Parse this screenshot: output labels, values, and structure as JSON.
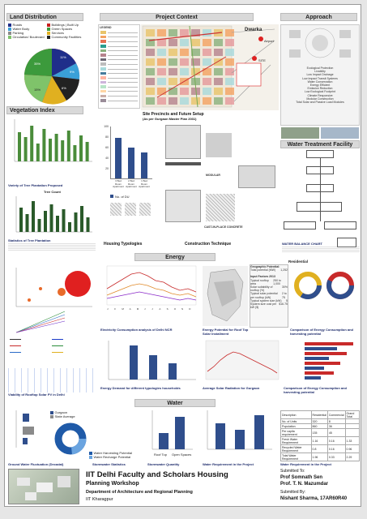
{
  "land": {
    "title": "Land Distribution",
    "legend": [
      {
        "label": "Roads",
        "color": "#1f2e8a"
      },
      {
        "label": "Buildings | Built Up",
        "color": "#c81e1e"
      },
      {
        "label": "Water Body",
        "color": "#3aa0d8"
      },
      {
        "label": "Green Spaces",
        "color": "#3c9a3c"
      },
      {
        "label": "Parking",
        "color": "#8a8a8a"
      },
      {
        "label": "Services",
        "color": "#e0b020"
      },
      {
        "label": "Circulation/ Boulevard",
        "color": "#7fc36a"
      },
      {
        "label": "Community Facilities",
        "color": "#222222"
      }
    ],
    "pie_labels": [
      "11%",
      "9%",
      "6%",
      "15%",
      "35%"
    ]
  },
  "vegetation": {
    "title": "Vegetation Index",
    "variety_title": "Variety of Tree Plantation Proposed",
    "tree_count_title": "Tree Count",
    "stats_title": "Statistics of Tree Plantation"
  },
  "context": {
    "title": "Project Context",
    "legend_title": "LEGEND",
    "place_dwarka": "Dwarka",
    "place_airport": "Airport",
    "site_label": "SITE",
    "caption": "Site Precincts and Future Setup",
    "subcaption": "(As per Gurgaon Master Plan 2031)"
  },
  "approach": {
    "title": "Approach",
    "list": [
      "Ecological Protection",
      "Livability",
      "Low Impact Drainage",
      "Low Impact Transit Systems",
      "Water Conservation",
      "Energy Efficient",
      "Emission Reduction",
      "Low Ecological Footprint",
      "Climate Responsive",
      "Modular Construction",
      "Total Solar and Passive Load Modules"
    ],
    "wt_title": "Water Treatment Facility"
  },
  "housing": {
    "title": "Housing Typologies",
    "axis_values": [
      "100",
      "80",
      "60",
      "40",
      "20",
      "0"
    ],
    "bars": [
      {
        "label": "3 Bed Room Apartment",
        "value": 78
      },
      {
        "label": "2 Bed Room Apartment",
        "value": 60
      },
      {
        "label": "1 Bed Room Apartment",
        "value": 50
      }
    ],
    "legend": "No. of DU"
  },
  "construction": {
    "title": "Construction Technique",
    "modular": "MODULAR",
    "castin": "CAST-IN-PLACE CONCRETE"
  },
  "water_balance": {
    "title": "WATER BALANCE CHART"
  },
  "energy": {
    "title": "Energy",
    "residential": "Residential",
    "geo_title": "Geographic Potential:",
    "input_title": "Input Factors 2013",
    "table": [
      [
        "Total potential (MW)",
        "1,252"
      ],
      [
        "Typical rooftop area",
        "250 to 1,000"
      ],
      [
        "Solar suitability of rooftop (%)",
        "30%"
      ],
      [
        "Typical solar potential per rooftop (kW)",
        "2 to 75"
      ],
      [
        "Typical system size (kW)",
        "5"
      ],
      [
        "System size cost per kW ($)",
        "$16.75"
      ]
    ],
    "caption1": "Electricity Consumption analysis of Delhi NCR",
    "caption2": "Energy Potential for Roof Top Solar Installment",
    "caption3": "Comparison of Energy Consumption and harvesting potential",
    "caption4": "Energy Demand for different typologies households",
    "caption5": "Average Solar Radiation for Gurgaon",
    "caption6": "Comparison of Energy Consumption and harvesting potential",
    "caption7": "Viability of Rooftop Solar PV in Delhi",
    "month_labels": [
      "J",
      "F",
      "M",
      "A",
      "M",
      "J",
      "J",
      "A",
      "S",
      "O",
      "N",
      "D"
    ]
  },
  "water": {
    "title": "Water",
    "legend": [
      "Gurgaon",
      "State Average"
    ],
    "donut_legend": [
      "Water Harvesting Potential",
      "Water Recharge Potential"
    ],
    "caption1": "Ground Water Fluctuation (Decadal)",
    "caption2": "Stormwater Statistics",
    "caption3": "Stormwater Quantity",
    "caption4": "Water Requirement in the Project",
    "caption5": "Water Requirement in the Project",
    "bar_labels": [
      "Roof Top",
      "Open Spaces"
    ],
    "table_head": [
      "Description",
      "Residential",
      "Commercial",
      "Grand Total"
    ],
    "table_rows": [
      [
        "No. of Units",
        "320",
        "8",
        ""
      ],
      [
        "Population",
        "860",
        "36",
        ""
      ],
      [
        "Per capita requirement",
        "135",
        "45",
        ""
      ],
      [
        "Fresh Water Requirement",
        "1.16",
        "0.16",
        "1.33"
      ],
      [
        "Recycled Water Requirement",
        "0.8",
        "0.16",
        "0.96"
      ],
      [
        "Total Water Requirement",
        "1.96",
        "0.33",
        "2.29"
      ]
    ]
  },
  "footer": {
    "title": "IIT Delhi Faculty and Scholars Housing",
    "subtitle": "Planning Workshop",
    "dept": "Department of Architecture and Regional Planning",
    "inst": "IIT Kharagpur",
    "submitted_to": "Submitted To:",
    "prof1": "Prof Somnath Sen",
    "prof2": "Prof. T. N. Mazumdar",
    "submitted_by": "Submitted By:",
    "student": "Nishant Sharma, 17AR60R40"
  }
}
